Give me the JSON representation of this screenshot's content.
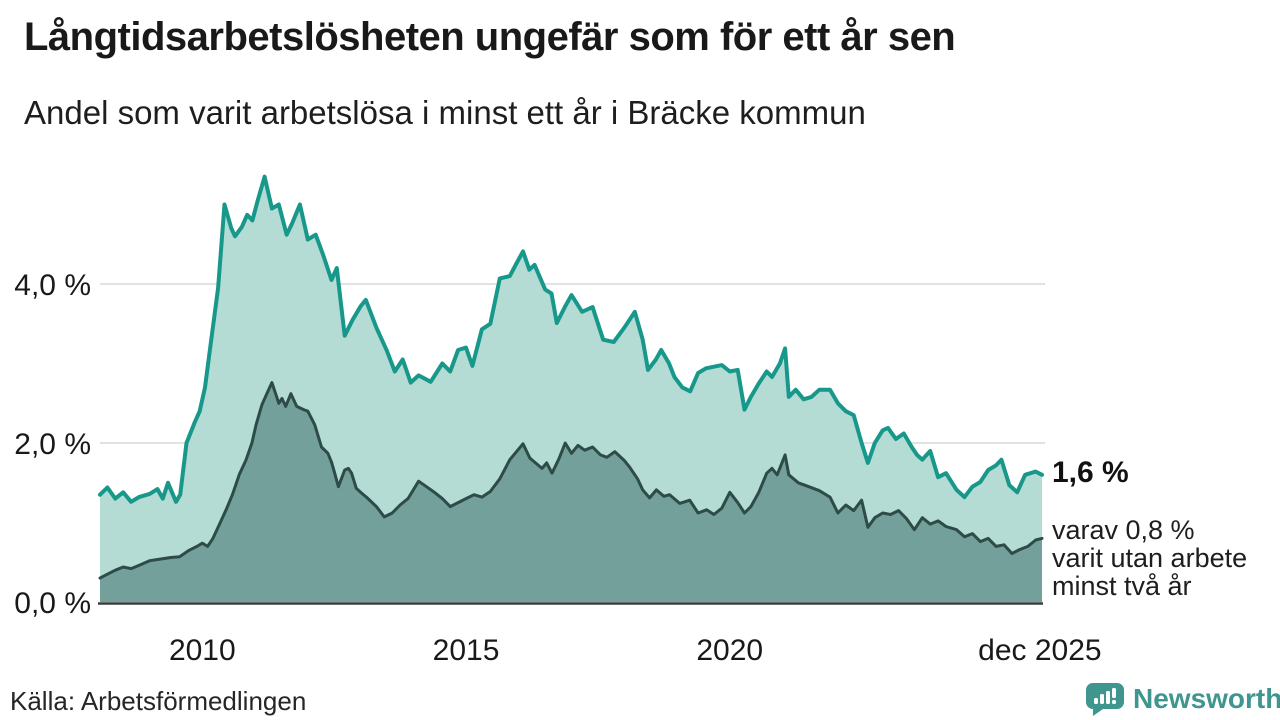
{
  "title": "Långtidsarbetslösheten ungefär som för ett år sen",
  "subtitle": "Andel som varit arbetslösa i minst ett år i Bräcke kommun",
  "annotation": {
    "value_label": "1,6 %",
    "detail_lines": [
      "varav 0,8 %",
      "varit utan arbete",
      "minst två år"
    ]
  },
  "source": "Källa: Arbetsförmedlingen",
  "branding": {
    "name": "Newsworthy",
    "color": "#3e968e"
  },
  "colors": {
    "accent_teal_line": "#17988a",
    "light_area_fill": "#b5dbd5",
    "dark_area_fill": "#74a09b",
    "dark_area_line": "#2d4b47",
    "gridline": "#d9d9d9",
    "axis_line": "#3b3b3b",
    "text": "#191919",
    "brand_teal": "#3e968e"
  },
  "chart_data": {
    "type": "area",
    "title": "Långtidsarbetslösheten ungefär som för ett år sen",
    "subtitle": "Andel som varit arbetslösa i minst ett år i Bräcke kommun",
    "unit": "%",
    "grid": true,
    "x_range": [
      2008.06,
      2025.92
    ],
    "ylim": [
      0,
      5.6
    ],
    "y_ticks": [
      {
        "v": 0,
        "label": "0,0 %"
      },
      {
        "v": 2,
        "label": "2,0 %"
      },
      {
        "v": 4,
        "label": "4,0 %"
      }
    ],
    "x_ticks": [
      {
        "t": 2010,
        "label": "2010"
      },
      {
        "t": 2015,
        "label": "2015"
      },
      {
        "t": 2020,
        "label": "2020"
      },
      {
        "t": 2025.88,
        "label": "dec 2025"
      }
    ],
    "series": [
      {
        "name": "arbetslösa minst ett år",
        "end_value_label": "1,6 %",
        "line_color": "#17988a",
        "fill_color": "#b5dbd5",
        "line_width": 4,
        "points": [
          [
            2008.06,
            1.35
          ],
          [
            2008.2,
            1.44
          ],
          [
            2008.35,
            1.3
          ],
          [
            2008.5,
            1.38
          ],
          [
            2008.65,
            1.26
          ],
          [
            2008.8,
            1.32
          ],
          [
            2009.0,
            1.36
          ],
          [
            2009.15,
            1.42
          ],
          [
            2009.25,
            1.3
          ],
          [
            2009.35,
            1.5
          ],
          [
            2009.5,
            1.26
          ],
          [
            2009.58,
            1.35
          ],
          [
            2009.7,
            2.0
          ],
          [
            2009.85,
            2.25
          ],
          [
            2009.95,
            2.4
          ],
          [
            2010.05,
            2.7
          ],
          [
            2010.15,
            3.2
          ],
          [
            2010.3,
            3.95
          ],
          [
            2010.42,
            5.0
          ],
          [
            2010.55,
            4.7
          ],
          [
            2010.62,
            4.6
          ],
          [
            2010.75,
            4.72
          ],
          [
            2010.85,
            4.87
          ],
          [
            2010.95,
            4.8
          ],
          [
            2011.05,
            5.05
          ],
          [
            2011.18,
            5.35
          ],
          [
            2011.32,
            4.95
          ],
          [
            2011.45,
            5.0
          ],
          [
            2011.6,
            4.62
          ],
          [
            2011.7,
            4.76
          ],
          [
            2011.85,
            5.0
          ],
          [
            2012.0,
            4.56
          ],
          [
            2012.15,
            4.62
          ],
          [
            2012.3,
            4.35
          ],
          [
            2012.45,
            4.05
          ],
          [
            2012.55,
            4.2
          ],
          [
            2012.7,
            3.35
          ],
          [
            2012.85,
            3.55
          ],
          [
            2013.0,
            3.72
          ],
          [
            2013.1,
            3.8
          ],
          [
            2013.3,
            3.45
          ],
          [
            2013.5,
            3.16
          ],
          [
            2013.65,
            2.9
          ],
          [
            2013.8,
            3.05
          ],
          [
            2013.95,
            2.76
          ],
          [
            2014.1,
            2.85
          ],
          [
            2014.33,
            2.77
          ],
          [
            2014.55,
            3.0
          ],
          [
            2014.7,
            2.9
          ],
          [
            2014.85,
            3.17
          ],
          [
            2015.0,
            3.2
          ],
          [
            2015.12,
            2.97
          ],
          [
            2015.3,
            3.43
          ],
          [
            2015.46,
            3.5
          ],
          [
            2015.64,
            4.07
          ],
          [
            2015.83,
            4.1
          ],
          [
            2015.95,
            4.25
          ],
          [
            2016.08,
            4.41
          ],
          [
            2016.2,
            4.18
          ],
          [
            2016.3,
            4.24
          ],
          [
            2016.5,
            3.93
          ],
          [
            2016.62,
            3.88
          ],
          [
            2016.72,
            3.51
          ],
          [
            2016.88,
            3.72
          ],
          [
            2017.0,
            3.86
          ],
          [
            2017.2,
            3.65
          ],
          [
            2017.4,
            3.71
          ],
          [
            2017.6,
            3.3
          ],
          [
            2017.8,
            3.27
          ],
          [
            2018.0,
            3.45
          ],
          [
            2018.2,
            3.65
          ],
          [
            2018.35,
            3.3
          ],
          [
            2018.45,
            2.92
          ],
          [
            2018.6,
            3.05
          ],
          [
            2018.7,
            3.17
          ],
          [
            2018.85,
            3.0
          ],
          [
            2018.95,
            2.83
          ],
          [
            2019.1,
            2.7
          ],
          [
            2019.25,
            2.65
          ],
          [
            2019.4,
            2.88
          ],
          [
            2019.55,
            2.94
          ],
          [
            2019.7,
            2.96
          ],
          [
            2019.85,
            2.98
          ],
          [
            2020.0,
            2.9
          ],
          [
            2020.15,
            2.92
          ],
          [
            2020.28,
            2.42
          ],
          [
            2020.4,
            2.58
          ],
          [
            2020.55,
            2.75
          ],
          [
            2020.7,
            2.9
          ],
          [
            2020.8,
            2.83
          ],
          [
            2020.95,
            3.0
          ],
          [
            2021.05,
            3.19
          ],
          [
            2021.12,
            2.58
          ],
          [
            2021.25,
            2.67
          ],
          [
            2021.4,
            2.55
          ],
          [
            2021.55,
            2.58
          ],
          [
            2021.7,
            2.67
          ],
          [
            2021.9,
            2.67
          ],
          [
            2022.05,
            2.5
          ],
          [
            2022.2,
            2.4
          ],
          [
            2022.35,
            2.35
          ],
          [
            2022.5,
            2.0
          ],
          [
            2022.62,
            1.75
          ],
          [
            2022.75,
            2.0
          ],
          [
            2022.9,
            2.16
          ],
          [
            2023.0,
            2.19
          ],
          [
            2023.15,
            2.05
          ],
          [
            2023.3,
            2.12
          ],
          [
            2023.45,
            1.95
          ],
          [
            2023.55,
            1.85
          ],
          [
            2023.65,
            1.79
          ],
          [
            2023.8,
            1.9
          ],
          [
            2023.95,
            1.57
          ],
          [
            2024.1,
            1.62
          ],
          [
            2024.3,
            1.41
          ],
          [
            2024.45,
            1.32
          ],
          [
            2024.6,
            1.45
          ],
          [
            2024.75,
            1.51
          ],
          [
            2024.9,
            1.66
          ],
          [
            2025.05,
            1.72
          ],
          [
            2025.15,
            1.79
          ],
          [
            2025.3,
            1.47
          ],
          [
            2025.45,
            1.38
          ],
          [
            2025.6,
            1.6
          ],
          [
            2025.8,
            1.64
          ],
          [
            2025.92,
            1.6
          ]
        ]
      },
      {
        "name": "arbetslösa minst två år",
        "end_value_label": "0,8 %",
        "line_color": "#2d4b47",
        "fill_color": "#74a09b",
        "line_width": 3,
        "points": [
          [
            2008.06,
            0.3
          ],
          [
            2008.2,
            0.35
          ],
          [
            2008.35,
            0.4
          ],
          [
            2008.5,
            0.44
          ],
          [
            2008.65,
            0.42
          ],
          [
            2008.8,
            0.46
          ],
          [
            2009.0,
            0.52
          ],
          [
            2009.2,
            0.54
          ],
          [
            2009.4,
            0.56
          ],
          [
            2009.57,
            0.57
          ],
          [
            2009.75,
            0.65
          ],
          [
            2009.9,
            0.7
          ],
          [
            2010.0,
            0.74
          ],
          [
            2010.1,
            0.7
          ],
          [
            2010.2,
            0.8
          ],
          [
            2010.32,
            0.97
          ],
          [
            2010.45,
            1.16
          ],
          [
            2010.57,
            1.35
          ],
          [
            2010.7,
            1.6
          ],
          [
            2010.83,
            1.79
          ],
          [
            2010.94,
            2.0
          ],
          [
            2011.02,
            2.23
          ],
          [
            2011.13,
            2.48
          ],
          [
            2011.21,
            2.6
          ],
          [
            2011.32,
            2.76
          ],
          [
            2011.4,
            2.6
          ],
          [
            2011.45,
            2.5
          ],
          [
            2011.51,
            2.56
          ],
          [
            2011.58,
            2.46
          ],
          [
            2011.68,
            2.62
          ],
          [
            2011.79,
            2.46
          ],
          [
            2011.92,
            2.42
          ],
          [
            2012.0,
            2.4
          ],
          [
            2012.13,
            2.23
          ],
          [
            2012.26,
            1.95
          ],
          [
            2012.38,
            1.87
          ],
          [
            2012.45,
            1.76
          ],
          [
            2012.51,
            1.62
          ],
          [
            2012.58,
            1.45
          ],
          [
            2012.7,
            1.66
          ],
          [
            2012.77,
            1.68
          ],
          [
            2012.83,
            1.62
          ],
          [
            2012.92,
            1.43
          ],
          [
            2013.02,
            1.37
          ],
          [
            2013.11,
            1.32
          ],
          [
            2013.3,
            1.2
          ],
          [
            2013.45,
            1.07
          ],
          [
            2013.6,
            1.12
          ],
          [
            2013.75,
            1.22
          ],
          [
            2013.9,
            1.3
          ],
          [
            2014.1,
            1.52
          ],
          [
            2014.25,
            1.45
          ],
          [
            2014.4,
            1.38
          ],
          [
            2014.55,
            1.3
          ],
          [
            2014.7,
            1.2
          ],
          [
            2014.85,
            1.25
          ],
          [
            2015.0,
            1.3
          ],
          [
            2015.15,
            1.35
          ],
          [
            2015.3,
            1.32
          ],
          [
            2015.46,
            1.39
          ],
          [
            2015.64,
            1.55
          ],
          [
            2015.83,
            1.79
          ],
          [
            2016.08,
            1.99
          ],
          [
            2016.21,
            1.81
          ],
          [
            2016.44,
            1.68
          ],
          [
            2016.53,
            1.75
          ],
          [
            2016.63,
            1.62
          ],
          [
            2016.76,
            1.8
          ],
          [
            2016.88,
            2.0
          ],
          [
            2017.0,
            1.87
          ],
          [
            2017.12,
            1.97
          ],
          [
            2017.25,
            1.91
          ],
          [
            2017.4,
            1.95
          ],
          [
            2017.55,
            1.85
          ],
          [
            2017.67,
            1.82
          ],
          [
            2017.82,
            1.89
          ],
          [
            2018.0,
            1.78
          ],
          [
            2018.1,
            1.7
          ],
          [
            2018.25,
            1.55
          ],
          [
            2018.35,
            1.41
          ],
          [
            2018.48,
            1.31
          ],
          [
            2018.61,
            1.41
          ],
          [
            2018.75,
            1.33
          ],
          [
            2018.86,
            1.35
          ],
          [
            2019.05,
            1.24
          ],
          [
            2019.24,
            1.28
          ],
          [
            2019.4,
            1.12
          ],
          [
            2019.56,
            1.16
          ],
          [
            2019.7,
            1.1
          ],
          [
            2019.85,
            1.18
          ],
          [
            2020.0,
            1.38
          ],
          [
            2020.15,
            1.25
          ],
          [
            2020.28,
            1.12
          ],
          [
            2020.4,
            1.2
          ],
          [
            2020.55,
            1.38
          ],
          [
            2020.7,
            1.62
          ],
          [
            2020.8,
            1.68
          ],
          [
            2020.9,
            1.6
          ],
          [
            2021.05,
            1.85
          ],
          [
            2021.12,
            1.6
          ],
          [
            2021.3,
            1.5
          ],
          [
            2021.5,
            1.45
          ],
          [
            2021.7,
            1.4
          ],
          [
            2021.9,
            1.32
          ],
          [
            2022.05,
            1.12
          ],
          [
            2022.2,
            1.22
          ],
          [
            2022.35,
            1.15
          ],
          [
            2022.5,
            1.28
          ],
          [
            2022.62,
            0.94
          ],
          [
            2022.75,
            1.06
          ],
          [
            2022.9,
            1.12
          ],
          [
            2023.05,
            1.1
          ],
          [
            2023.2,
            1.15
          ],
          [
            2023.35,
            1.05
          ],
          [
            2023.5,
            0.91
          ],
          [
            2023.65,
            1.06
          ],
          [
            2023.8,
            0.98
          ],
          [
            2023.95,
            1.02
          ],
          [
            2024.1,
            0.95
          ],
          [
            2024.3,
            0.91
          ],
          [
            2024.45,
            0.82
          ],
          [
            2024.6,
            0.86
          ],
          [
            2024.75,
            0.76
          ],
          [
            2024.9,
            0.8
          ],
          [
            2025.05,
            0.7
          ],
          [
            2025.2,
            0.72
          ],
          [
            2025.35,
            0.61
          ],
          [
            2025.5,
            0.66
          ],
          [
            2025.65,
            0.7
          ],
          [
            2025.8,
            0.78
          ],
          [
            2025.92,
            0.8
          ]
        ]
      }
    ]
  }
}
